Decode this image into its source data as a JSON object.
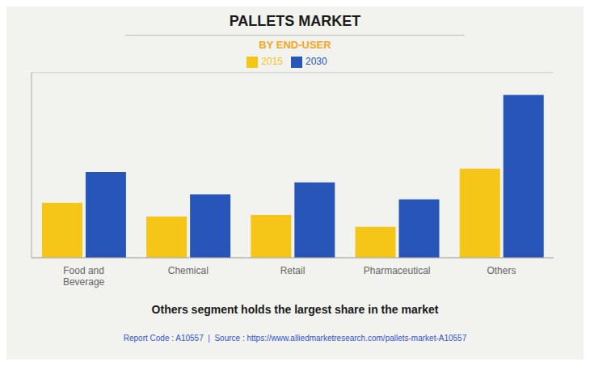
{
  "chart_data": {
    "type": "bar",
    "title": "PALLETS MARKET",
    "subtitle": "BY END-USER",
    "categories": [
      "Food and\nBeverage",
      "Chemical",
      "Retail",
      "Pharmaceutical",
      "Others"
    ],
    "series": [
      {
        "name": "2015",
        "color": "#f5c518",
        "values": [
          32,
          24,
          25,
          18,
          52
        ]
      },
      {
        "name": "2030",
        "color": "#2855b8",
        "values": [
          50,
          37,
          44,
          34,
          95
        ]
      }
    ],
    "ylim": [
      0,
      108
    ],
    "yticks": [
      0,
      20,
      40,
      60,
      80,
      100
    ],
    "grid": true,
    "legend": "upper center",
    "tick_labels": "x",
    "annotation": "Others segment holds the largest share in the market",
    "footer": "Report Code : A10557  |  Source : https://www.alliedmarketresearch.com/pallets-market-A10557"
  }
}
